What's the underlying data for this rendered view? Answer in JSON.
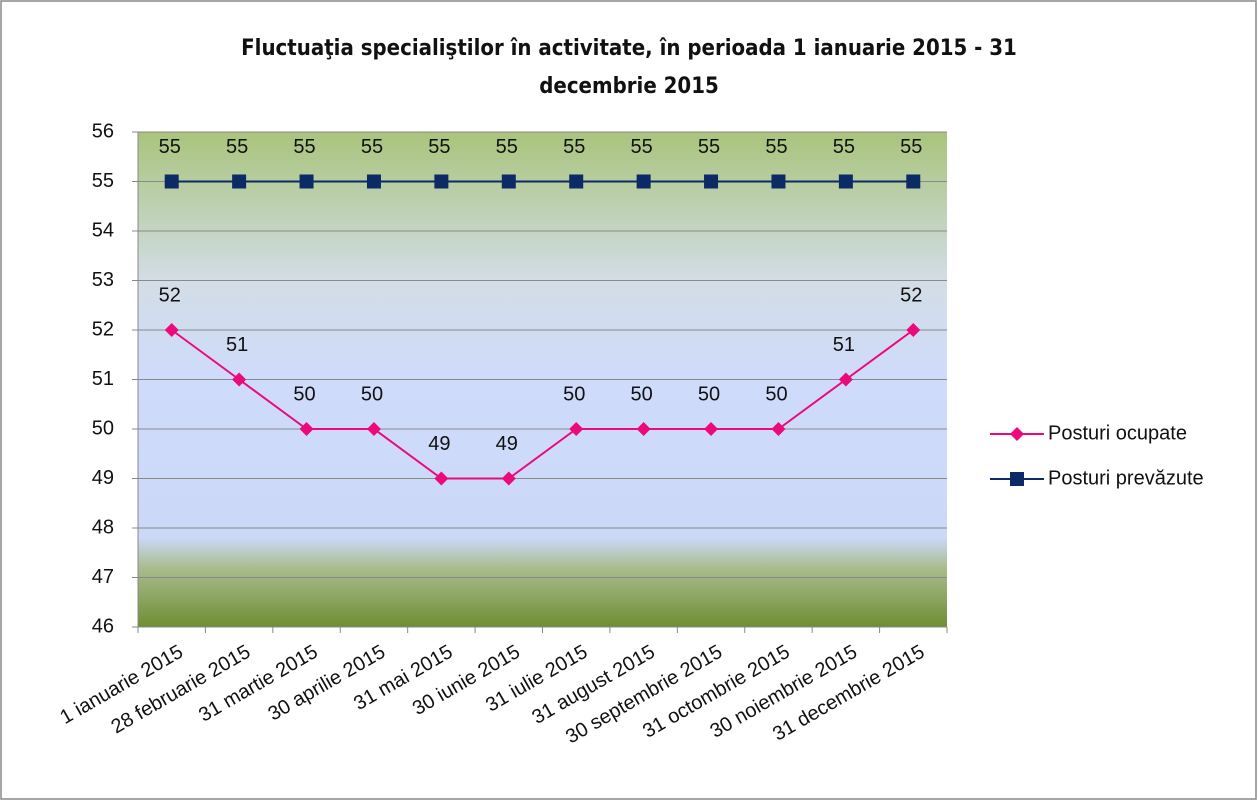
{
  "chart_data": {
    "type": "line",
    "title": "Fluctuaţia specialiştilor în activitate, în perioada 1 ianuarie 2015 - 31 decembrie 2015",
    "categories": [
      "1 ianuarie 2015",
      "28 februarie 2015",
      "31 martie 2015",
      "30 aprilie 2015",
      "31 mai 2015",
      "30 iunie 2015",
      "31 iulie 2015",
      "31 august 2015",
      "30 septembrie 2015",
      "31 octombrie 2015",
      "30 noiembrie 2015",
      "31 decembrie 2015"
    ],
    "series": [
      {
        "name": "Posturi ocupate",
        "color": "#ec0a7a",
        "marker": "diamond",
        "values": [
          52,
          51,
          50,
          50,
          49,
          49,
          50,
          50,
          50,
          50,
          51,
          52
        ]
      },
      {
        "name": "Posturi prevăzute",
        "color": "#0c2a66",
        "marker": "square",
        "values": [
          55,
          55,
          55,
          55,
          55,
          55,
          55,
          55,
          55,
          55,
          55,
          55
        ]
      }
    ],
    "ylim": [
      46,
      56
    ],
    "yticks": [
      46,
      47,
      48,
      49,
      50,
      51,
      52,
      53,
      54,
      55,
      56
    ],
    "grid": true,
    "legend": "right",
    "data_labels": true
  }
}
